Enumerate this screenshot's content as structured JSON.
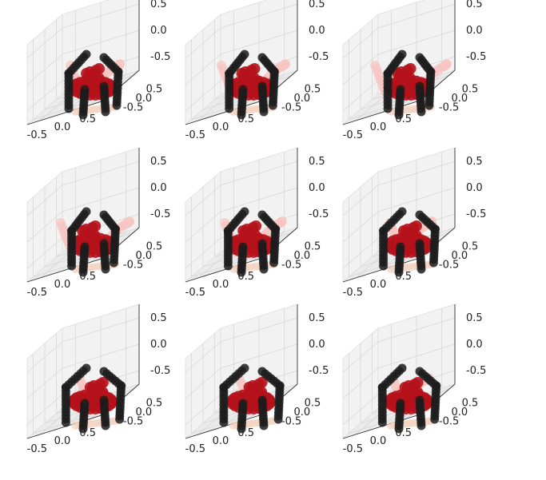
{
  "chart_data": {
    "type": "scatter",
    "title": "",
    "layout_grid": "3x3",
    "point_shape": "chair",
    "colors": {
      "frame": "#1c1c1c",
      "seat": "#b5121b",
      "back": "#f7c6c3",
      "rail": "#f2d2bf",
      "pane": "#f2f2f2",
      "pane_edge": "#dcdcdc"
    },
    "axis_range": [
      -0.5,
      0.5
    ],
    "ticks": {
      "x": [
        "-0.5",
        "0.0",
        "0.5"
      ],
      "y": [
        "0.5",
        "0.0",
        "-0.5"
      ],
      "z": [
        "0.5",
        "0.0",
        "-0.5"
      ]
    },
    "panels": [
      {
        "view_azimuth_deg": 0
      },
      {
        "view_azimuth_deg": 40
      },
      {
        "view_azimuth_deg": 80
      },
      {
        "view_azimuth_deg": 120
      },
      {
        "view_azimuth_deg": 160
      },
      {
        "view_azimuth_deg": 200
      },
      {
        "view_azimuth_deg": 240
      },
      {
        "view_azimuth_deg": 280
      },
      {
        "view_azimuth_deg": 320
      }
    ]
  }
}
